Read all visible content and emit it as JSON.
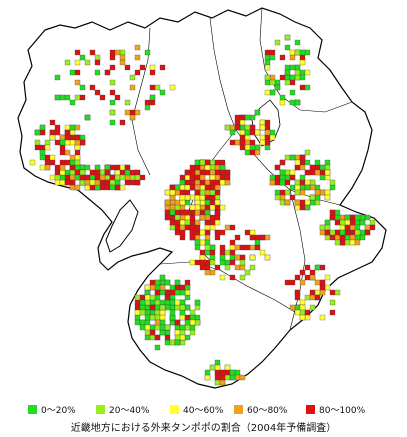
{
  "map": {
    "caption": "近畿地方における外来タンポポの割合（2004年予備調査）",
    "legend": [
      {
        "label": "0〜20%",
        "color": "#22dd22"
      },
      {
        "label": "20〜40%",
        "color": "#99ee22"
      },
      {
        "label": "40〜60%",
        "color": "#ffff33"
      },
      {
        "label": "60〜80%",
        "color": "#f2a21a"
      },
      {
        "label": "80〜100%",
        "color": "#dd1111"
      }
    ],
    "border_color": "#000000",
    "land_color": "#ffffff"
  }
}
